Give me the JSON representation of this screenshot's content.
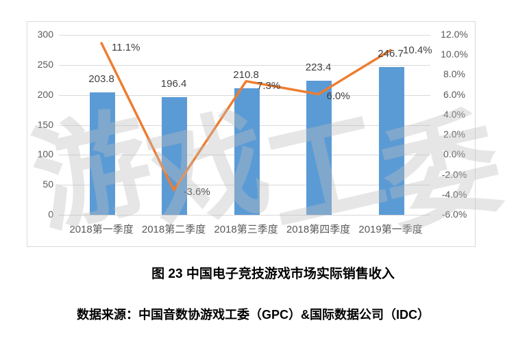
{
  "page": {
    "background": "#ffffff"
  },
  "watermark": {
    "text": "游戏工委"
  },
  "figure": {
    "title": "图 23  中国电子竞技游戏市场实际销售收入",
    "source": "数据来源：中国音数协游戏工委（GPC）&国际数据公司（IDC）"
  },
  "chart_data": {
    "type": "combo-bar-line",
    "title": "",
    "categories": [
      "2018第一季度",
      "2018第二季度",
      "2018第三季度",
      "2018第四季度",
      "2019第一季度"
    ],
    "series": [
      {
        "name": "actual-sales-revenue-bars",
        "type": "bar",
        "axis": "left",
        "color": "#5b9bd5",
        "values": [
          203.8,
          196.4,
          210.8,
          223.4,
          246.7
        ],
        "labels": [
          "203.8",
          "196.4",
          "210.8",
          "223.4",
          "246.7"
        ]
      },
      {
        "name": "growth-rate-line",
        "type": "line",
        "axis": "right",
        "color": "#ed7d31",
        "values": [
          11.1,
          -3.6,
          7.3,
          6.0,
          10.4
        ],
        "labels": [
          "11.1%",
          "-3.6%",
          "7.3%",
          "6.0%",
          "10.4%"
        ]
      }
    ],
    "left_axis": {
      "min": 0,
      "max": 300,
      "step": 50,
      "tick_labels": [
        "0",
        "50",
        "100",
        "150",
        "200",
        "250",
        "300"
      ]
    },
    "right_axis": {
      "min": -6,
      "max": 12,
      "step": 2,
      "tick_labels": [
        "-6.0%",
        "-4.0%",
        "-2.0%",
        "0.0%",
        "2.0%",
        "4.0%",
        "6.0%",
        "8.0%",
        "10.0%",
        "12.0%"
      ]
    },
    "grid": true,
    "legend": "none",
    "grid_color": "#d9d9d9",
    "tick_color": "#595959",
    "data_label_color": "#404040"
  }
}
